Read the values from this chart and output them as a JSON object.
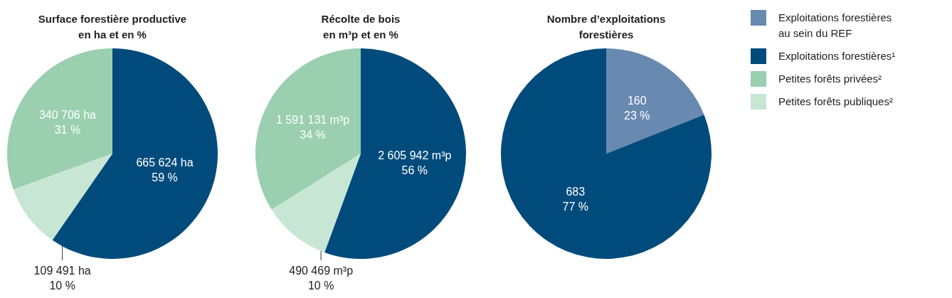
{
  "chart_data": [
    {
      "type": "pie",
      "title": "Surface forestière productive\nen ha et en %",
      "categories": [
        "Exploitations forestières¹",
        "Petites forêts privées²",
        "Petites forêts publiques²"
      ],
      "values": [
        665624,
        340706,
        109491
      ],
      "colors": [
        "#004b7c",
        "#9acfb0",
        "#c8e6d4"
      ],
      "value_labels": [
        "665 624 ha\n59 %",
        "340 706 ha\n31 %",
        "109 491 ha\n10 %"
      ],
      "legend": "right"
    },
    {
      "type": "pie",
      "title": "Récolte de bois\nen m³p et en %",
      "categories": [
        null,
        null,
        null
      ],
      "values": [
        2605942,
        1591131,
        490469
      ],
      "colors": [
        "#004b7c",
        "#9acfb0",
        "#c8e6d4"
      ],
      "value_labels": [
        "2 605 942 m³p\n56 %",
        "1 591 131 m³p\n34 %",
        "490 469 m³p\n10 %"
      ]
    },
    {
      "type": "pie",
      "title": "Nombre d’exploitations\nforestières",
      "categories": [
        "Exploitations forestières\nau sein du REF",
        null
      ],
      "values": [
        160,
        683
      ],
      "colors": [
        "#6889b0",
        "#004b7c"
      ],
      "value_labels": [
        "160\n23 %",
        "683\n77 %"
      ]
    }
  ]
}
